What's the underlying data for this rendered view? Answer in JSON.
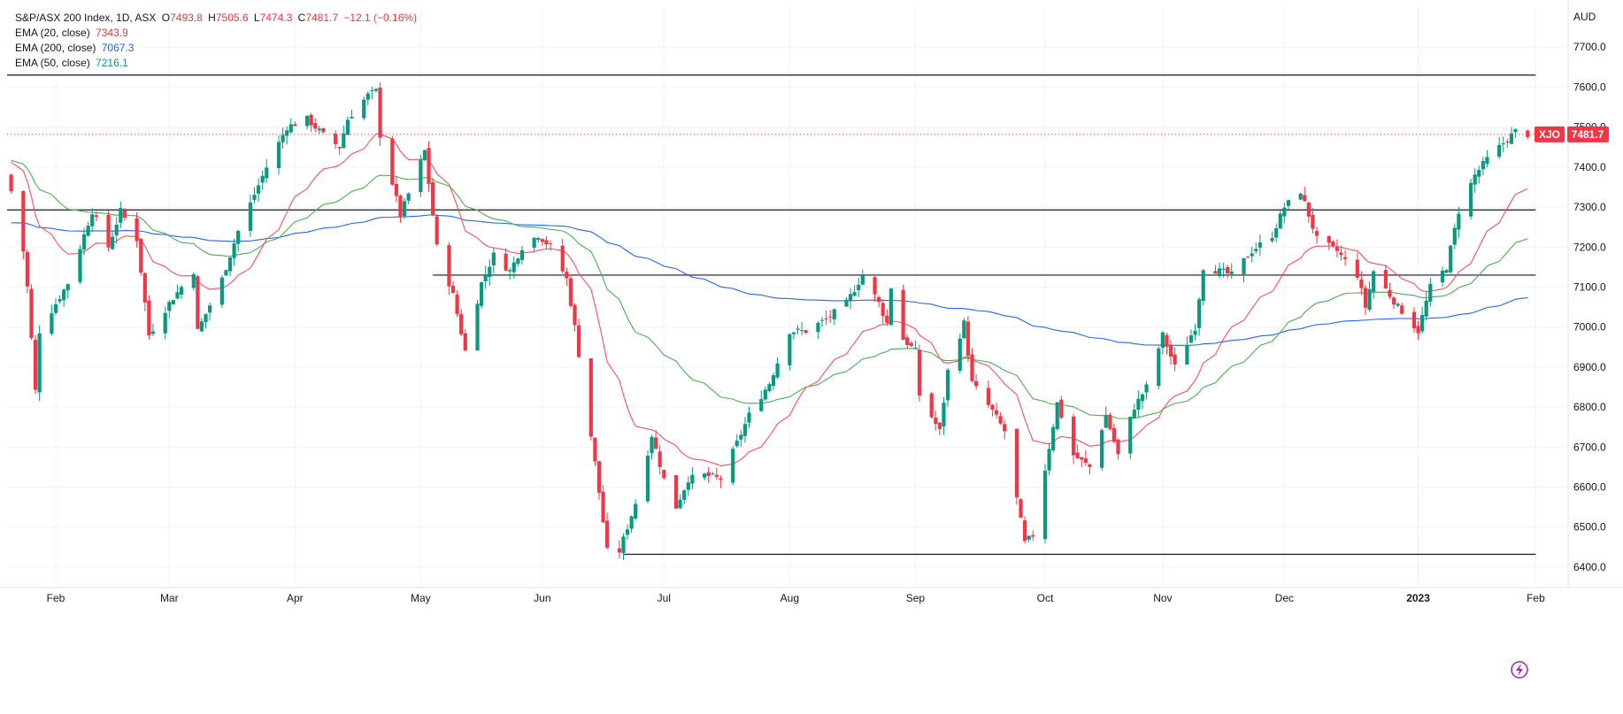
{
  "legend": {
    "symbol_line": "S&P/ASX 200 Index, 1D, ASX",
    "o_label": "O",
    "o_value": "7493.8",
    "h_label": "H",
    "h_value": "7505.6",
    "l_label": "L",
    "l_value": "7474.3",
    "c_label": "C",
    "c_value": "7481.7",
    "change": "−12.1 (−0.16%)",
    "ema": [
      {
        "label": "EMA (20, close)",
        "value": "7343.9",
        "color": "#f23645"
      },
      {
        "label": "EMA (200, close)",
        "value": "7067.3",
        "color": "#2962ff"
      },
      {
        "label": "EMA (50, close)",
        "value": "7216.1",
        "color": "#089981"
      }
    ]
  },
  "currency": "AUD",
  "last_price_badge": {
    "ticker": "XJO",
    "price": "7481.7"
  },
  "colors": {
    "up": "#089981",
    "down": "#f23645",
    "ema20": "#f7525f",
    "ema50": "#4caf50",
    "ema200": "#2962ff",
    "hline": "#131722"
  },
  "chart_data": {
    "type": "candlestick",
    "ylim": [
      6380,
      7800
    ],
    "y_ticks": [
      6400,
      6500,
      6600,
      6700,
      6800,
      6900,
      7000,
      7100,
      7200,
      7300,
      7400,
      7500,
      7600,
      7700
    ],
    "x_months": [
      {
        "label": "Feb",
        "date": "2022-02-01"
      },
      {
        "label": "Mar",
        "date": "2022-03-01"
      },
      {
        "label": "Apr",
        "date": "2022-04-01"
      },
      {
        "label": "May",
        "date": "2022-05-02"
      },
      {
        "label": "Jun",
        "date": "2022-06-01"
      },
      {
        "label": "Jul",
        "date": "2022-07-01"
      },
      {
        "label": "Aug",
        "date": "2022-08-01"
      },
      {
        "label": "Sep",
        "date": "2022-09-01"
      },
      {
        "label": "Oct",
        "date": "2022-10-03"
      },
      {
        "label": "Nov",
        "date": "2022-11-01"
      },
      {
        "label": "Dec",
        "date": "2022-12-01"
      },
      {
        "label": "2023",
        "date": "2023-01-03"
      },
      {
        "label": "Feb",
        "date": "2023-02-01"
      }
    ],
    "horizontal_lines": [
      {
        "value": 7630,
        "start": "2022-01-20",
        "end": "2023-02-01"
      },
      {
        "value": 7293,
        "start": "2022-01-20",
        "end": "2023-02-01"
      },
      {
        "value": 7130,
        "start": "2022-05-05",
        "end": "2023-02-01"
      },
      {
        "value": 6432,
        "start": "2022-06-21",
        "end": "2023-02-01"
      }
    ],
    "last_price": 7481.7,
    "anchors": [
      {
        "date": "2022-01-21",
        "close": 7340
      },
      {
        "date": "2022-01-24",
        "close": 7190
      },
      {
        "date": "2022-01-25",
        "close": 7100
      },
      {
        "date": "2022-01-27",
        "close": 6840
      },
      {
        "date": "2022-01-28",
        "close": 6990
      },
      {
        "date": "2022-02-04",
        "close": 7110
      },
      {
        "date": "2022-02-10",
        "close": 7290
      },
      {
        "date": "2022-02-14",
        "close": 7200
      },
      {
        "date": "2022-02-17",
        "close": 7290
      },
      {
        "date": "2022-02-21",
        "close": 7220
      },
      {
        "date": "2022-02-24",
        "close": 6980
      },
      {
        "date": "2022-03-01",
        "close": 7060
      },
      {
        "date": "2022-03-07",
        "close": 7140
      },
      {
        "date": "2022-03-08",
        "close": 6990
      },
      {
        "date": "2022-03-14",
        "close": 7120
      },
      {
        "date": "2022-03-18",
        "close": 7240
      },
      {
        "date": "2022-03-25",
        "close": 7400
      },
      {
        "date": "2022-03-30",
        "close": 7500
      },
      {
        "date": "2022-04-04",
        "close": 7520
      },
      {
        "date": "2022-04-08",
        "close": 7480
      },
      {
        "date": "2022-04-12",
        "close": 7450
      },
      {
        "date": "2022-04-14",
        "close": 7520
      },
      {
        "date": "2022-04-19",
        "close": 7580
      },
      {
        "date": "2022-04-21",
        "close": 7590
      },
      {
        "date": "2022-04-22",
        "close": 7480
      },
      {
        "date": "2022-04-27",
        "close": 7280
      },
      {
        "date": "2022-05-03",
        "close": 7440
      },
      {
        "date": "2022-05-06",
        "close": 7200
      },
      {
        "date": "2022-05-10",
        "close": 7080
      },
      {
        "date": "2022-05-13",
        "close": 6940
      },
      {
        "date": "2022-05-17",
        "close": 7110
      },
      {
        "date": "2022-05-20",
        "close": 7180
      },
      {
        "date": "2022-05-24",
        "close": 7140
      },
      {
        "date": "2022-05-27",
        "close": 7200
      },
      {
        "date": "2022-05-31",
        "close": 7230
      },
      {
        "date": "2022-06-03",
        "close": 7200
      },
      {
        "date": "2022-06-07",
        "close": 7120
      },
      {
        "date": "2022-06-09",
        "close": 7000
      },
      {
        "date": "2022-06-14",
        "close": 6660
      },
      {
        "date": "2022-06-17",
        "close": 6440
      },
      {
        "date": "2022-06-20",
        "close": 6440
      },
      {
        "date": "2022-06-24",
        "close": 6560
      },
      {
        "date": "2022-06-28",
        "close": 6730
      },
      {
        "date": "2022-07-01",
        "close": 6620
      },
      {
        "date": "2022-07-04",
        "close": 6550
      },
      {
        "date": "2022-07-07",
        "close": 6620
      },
      {
        "date": "2022-07-11",
        "close": 6630
      },
      {
        "date": "2022-07-15",
        "close": 6620
      },
      {
        "date": "2022-07-19",
        "close": 6710
      },
      {
        "date": "2022-07-22",
        "close": 6780
      },
      {
        "date": "2022-07-27",
        "close": 6860
      },
      {
        "date": "2022-08-01",
        "close": 6990
      },
      {
        "date": "2022-08-05",
        "close": 6990
      },
      {
        "date": "2022-08-10",
        "close": 7020
      },
      {
        "date": "2022-08-15",
        "close": 7060
      },
      {
        "date": "2022-08-19",
        "close": 7130
      },
      {
        "date": "2022-08-23",
        "close": 7060
      },
      {
        "date": "2022-08-25",
        "close": 7010
      },
      {
        "date": "2022-08-26",
        "close": 7100
      },
      {
        "date": "2022-08-29",
        "close": 6970
      },
      {
        "date": "2022-09-01",
        "close": 6940
      },
      {
        "date": "2022-09-02",
        "close": 6830
      },
      {
        "date": "2022-09-07",
        "close": 6740
      },
      {
        "date": "2022-09-09",
        "close": 6890
      },
      {
        "date": "2022-09-13",
        "close": 7010
      },
      {
        "date": "2022-09-15",
        "close": 6860
      },
      {
        "date": "2022-09-20",
        "close": 6790
      },
      {
        "date": "2022-09-23",
        "close": 6740
      },
      {
        "date": "2022-09-26",
        "close": 6570
      },
      {
        "date": "2022-09-28",
        "close": 6460
      },
      {
        "date": "2022-09-30",
        "close": 6480
      },
      {
        "date": "2022-10-04",
        "close": 6700
      },
      {
        "date": "2022-10-06",
        "close": 6810
      },
      {
        "date": "2022-10-10",
        "close": 6680
      },
      {
        "date": "2022-10-14",
        "close": 6650
      },
      {
        "date": "2022-10-18",
        "close": 6780
      },
      {
        "date": "2022-10-21",
        "close": 6680
      },
      {
        "date": "2022-10-25",
        "close": 6800
      },
      {
        "date": "2022-10-28",
        "close": 6850
      },
      {
        "date": "2022-11-01",
        "close": 6980
      },
      {
        "date": "2022-11-04",
        "close": 6900
      },
      {
        "date": "2022-11-09",
        "close": 7000
      },
      {
        "date": "2022-11-11",
        "close": 7150
      },
      {
        "date": "2022-11-15",
        "close": 7140
      },
      {
        "date": "2022-11-18",
        "close": 7130
      },
      {
        "date": "2022-11-23",
        "close": 7190
      },
      {
        "date": "2022-11-28",
        "close": 7230
      },
      {
        "date": "2022-12-01",
        "close": 7300
      },
      {
        "date": "2022-12-05",
        "close": 7340
      },
      {
        "date": "2022-12-09",
        "close": 7220
      },
      {
        "date": "2022-12-14",
        "close": 7190
      },
      {
        "date": "2022-12-19",
        "close": 7130
      },
      {
        "date": "2022-12-21",
        "close": 7050
      },
      {
        "date": "2022-12-23",
        "close": 7140
      },
      {
        "date": "2022-12-29",
        "close": 7050
      },
      {
        "date": "2022-12-30",
        "close": 7040
      },
      {
        "date": "2023-01-03",
        "close": 6990
      },
      {
        "date": "2023-01-06",
        "close": 7100
      },
      {
        "date": "2023-01-10",
        "close": 7150
      },
      {
        "date": "2023-01-13",
        "close": 7290
      },
      {
        "date": "2023-01-17",
        "close": 7380
      },
      {
        "date": "2023-01-20",
        "close": 7420
      },
      {
        "date": "2023-01-24",
        "close": 7460
      },
      {
        "date": "2023-01-27",
        "close": 7490
      },
      {
        "date": "2023-01-30",
        "close": 7482
      }
    ]
  }
}
